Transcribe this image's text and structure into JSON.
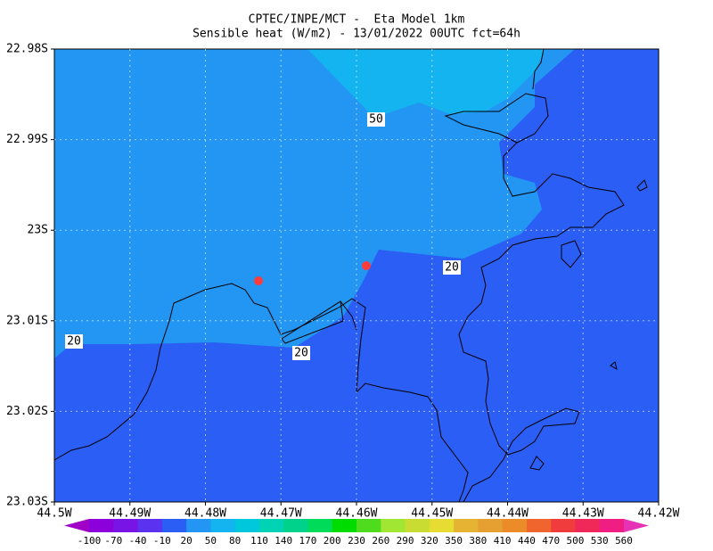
{
  "header": {
    "title": "CPTEC/INPE/MCT -  Eta Model 1km",
    "subtitle": "Sensible heat (W/m2) - 13/01/2022 00UTC fct=64h"
  },
  "map": {
    "lat_labels": [
      "22.98S",
      "22.99S",
      "23S",
      "23.01S",
      "23.02S",
      "23.03S"
    ],
    "lon_labels": [
      "44.5W",
      "44.49W",
      "44.48W",
      "44.47W",
      "44.46W",
      "44.45W",
      "44.44W",
      "44.43W",
      "44.42W"
    ],
    "contour_labels": [
      "50",
      "20",
      "20",
      "20"
    ]
  },
  "colorbar": {
    "labels": [
      "-100",
      "-70",
      "-40",
      "-10",
      "20",
      "50",
      "80",
      "110",
      "140",
      "170",
      "200",
      "230",
      "260",
      "290",
      "320",
      "350",
      "380",
      "410",
      "440",
      "470",
      "500",
      "530",
      "560"
    ],
    "colors": [
      "#a000c8",
      "#8c00dc",
      "#7814e6",
      "#5a32f0",
      "#2b5ef5",
      "#2296f2",
      "#14b4f0",
      "#00c8dc",
      "#00d2b4",
      "#00d28c",
      "#00dc5a",
      "#00dc00",
      "#50dc1e",
      "#a0e632",
      "#c8dc32",
      "#e6dc32",
      "#e6b432",
      "#e6a032",
      "#eb8c28",
      "#f0642d",
      "#f03c3c",
      "#f0285a",
      "#f01e82",
      "#e632b4"
    ]
  }
}
